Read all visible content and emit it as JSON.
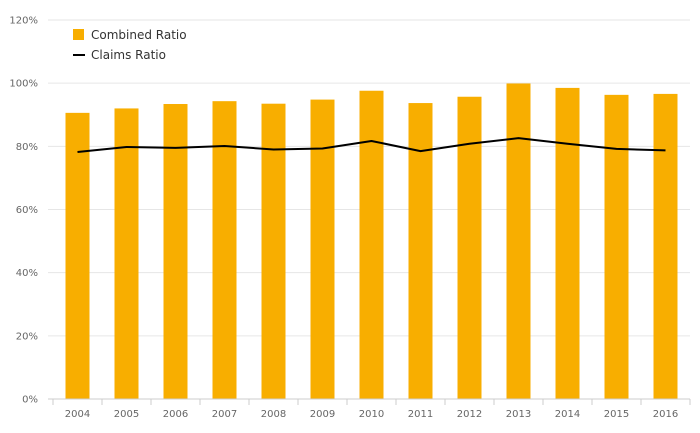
{
  "chart_data": {
    "type": "bar",
    "title": "",
    "xlabel": "",
    "ylabel": "",
    "categories": [
      "2004",
      "2005",
      "2006",
      "2007",
      "2008",
      "2009",
      "2010",
      "2011",
      "2012",
      "2013",
      "2014",
      "2015",
      "2016"
    ],
    "series": [
      {
        "name": "Combined Ratio",
        "kind": "bar",
        "color": "#f8ae00",
        "values": [
          90.6,
          92.0,
          93.4,
          94.3,
          93.5,
          94.8,
          97.6,
          93.7,
          95.7,
          99.9,
          98.5,
          96.3,
          96.6
        ]
      },
      {
        "name": "Claims Ratio",
        "kind": "line",
        "color": "#000000",
        "values": [
          78.2,
          79.8,
          79.5,
          80.1,
          79.0,
          79.3,
          81.7,
          78.5,
          80.8,
          82.6,
          80.8,
          79.2,
          78.7
        ]
      }
    ],
    "ylim": [
      0,
      120
    ],
    "yticks": [
      "0%",
      "20%",
      "40%",
      "60%",
      "80%",
      "100%",
      "120%"
    ],
    "ytick_values": [
      0,
      20,
      40,
      60,
      80,
      100,
      120
    ],
    "grid": true,
    "legend_position": "top-left"
  }
}
